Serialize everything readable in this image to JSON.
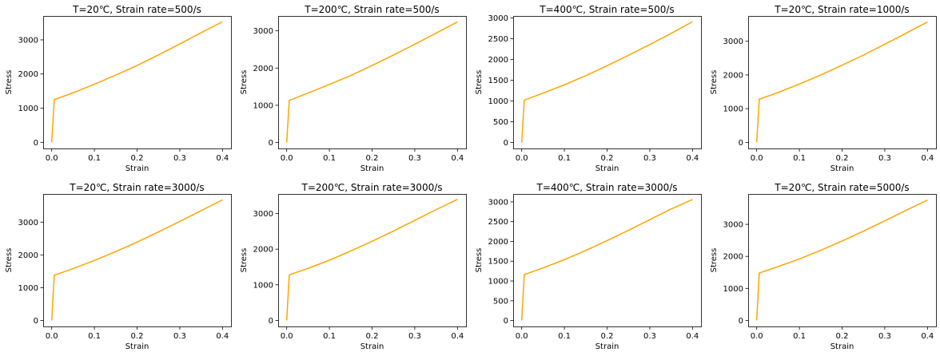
{
  "chart_data": [
    {
      "type": "line",
      "title": "T=20℃, Strain rate=500/s",
      "xlabel": "Strain",
      "ylabel": "Stress",
      "xlim": [
        -0.02,
        0.42
      ],
      "ylim": [
        -180,
        3700
      ],
      "xticks": [
        "0.0",
        "0.1",
        "0.2",
        "0.3",
        "0.4"
      ],
      "yticks": [
        "0",
        "1000",
        "2000",
        "3000"
      ],
      "series": [
        {
          "color": "#FFA500",
          "x": [
            0,
            0.006,
            0.05,
            0.1,
            0.15,
            0.2,
            0.25,
            0.3,
            0.35,
            0.4
          ],
          "y": [
            0,
            1250,
            1450,
            1700,
            1970,
            2250,
            2560,
            2880,
            3210,
            3530
          ]
        }
      ],
      "grid": false
    },
    {
      "type": "line",
      "title": "T=200℃, Strain rate=500/s",
      "xlabel": "Strain",
      "ylabel": "Stress",
      "xlim": [
        -0.02,
        0.42
      ],
      "ylim": [
        -160,
        3400
      ],
      "xticks": [
        "0.0",
        "0.1",
        "0.2",
        "0.3",
        "0.4"
      ],
      "yticks": [
        "0",
        "1000",
        "2000",
        "3000"
      ],
      "series": [
        {
          "color": "#FFA500",
          "x": [
            0,
            0.006,
            0.05,
            0.1,
            0.15,
            0.2,
            0.25,
            0.3,
            0.35,
            0.4
          ],
          "y": [
            0,
            1130,
            1330,
            1560,
            1800,
            2070,
            2350,
            2640,
            2940,
            3240
          ]
        }
      ],
      "grid": false
    },
    {
      "type": "line",
      "title": "T=400℃, Strain rate=500/s",
      "xlabel": "Strain",
      "ylabel": "Stress",
      "xlim": [
        -0.02,
        0.42
      ],
      "ylim": [
        -145,
        3050
      ],
      "xticks": [
        "0.0",
        "0.1",
        "0.2",
        "0.3",
        "0.4"
      ],
      "yticks": [
        "0",
        "500",
        "1000",
        "1500",
        "2000",
        "2500",
        "3000"
      ],
      "series": [
        {
          "color": "#FFA500",
          "x": [
            0,
            0.006,
            0.05,
            0.1,
            0.15,
            0.2,
            0.25,
            0.3,
            0.35,
            0.4
          ],
          "y": [
            0,
            1020,
            1190,
            1390,
            1610,
            1850,
            2100,
            2360,
            2630,
            2910
          ]
        }
      ],
      "grid": false
    },
    {
      "type": "line",
      "title": "T=20℃, Strain rate=1000/s",
      "xlabel": "Strain",
      "ylabel": "Stress",
      "xlim": [
        -0.02,
        0.42
      ],
      "ylim": [
        -180,
        3750
      ],
      "xticks": [
        "0.0",
        "0.1",
        "0.2",
        "0.3",
        "0.4"
      ],
      "yticks": [
        "0",
        "1000",
        "2000",
        "3000"
      ],
      "series": [
        {
          "color": "#FFA500",
          "x": [
            0,
            0.006,
            0.05,
            0.1,
            0.15,
            0.2,
            0.25,
            0.3,
            0.35,
            0.4
          ],
          "y": [
            0,
            1280,
            1480,
            1730,
            2000,
            2290,
            2590,
            2910,
            3240,
            3570
          ]
        }
      ],
      "grid": false
    },
    {
      "type": "line",
      "title": "T=20℃, Strain rate=3000/s",
      "xlabel": "Strain",
      "ylabel": "Stress",
      "xlim": [
        -0.02,
        0.42
      ],
      "ylim": [
        -185,
        3860
      ],
      "xticks": [
        "0.0",
        "0.1",
        "0.2",
        "0.3",
        "0.4"
      ],
      "yticks": [
        "0",
        "1000",
        "2000",
        "3000"
      ],
      "series": [
        {
          "color": "#FFA500",
          "x": [
            0,
            0.006,
            0.05,
            0.1,
            0.15,
            0.2,
            0.25,
            0.3,
            0.35,
            0.4
          ],
          "y": [
            0,
            1380,
            1580,
            1830,
            2100,
            2390,
            2700,
            3020,
            3350,
            3680
          ]
        }
      ],
      "grid": false
    },
    {
      "type": "line",
      "title": "T=200℃, Strain rate=3000/s",
      "xlabel": "Strain",
      "ylabel": "Stress",
      "xlim": [
        -0.02,
        0.42
      ],
      "ylim": [
        -170,
        3550
      ],
      "xticks": [
        "0.0",
        "0.1",
        "0.2",
        "0.3",
        "0.4"
      ],
      "yticks": [
        "0",
        "1000",
        "2000",
        "3000"
      ],
      "series": [
        {
          "color": "#FFA500",
          "x": [
            0,
            0.006,
            0.05,
            0.1,
            0.15,
            0.2,
            0.25,
            0.3,
            0.35,
            0.4
          ],
          "y": [
            0,
            1280,
            1460,
            1690,
            1950,
            2220,
            2510,
            2810,
            3110,
            3400
          ]
        }
      ],
      "grid": false
    },
    {
      "type": "line",
      "title": "T=400℃, Strain rate=3000/s",
      "xlabel": "Strain",
      "ylabel": "Stress",
      "xlim": [
        -0.02,
        0.42
      ],
      "ylim": [
        -150,
        3200
      ],
      "xticks": [
        "0.0",
        "0.1",
        "0.2",
        "0.3",
        "0.4"
      ],
      "yticks": [
        "0",
        "500",
        "1000",
        "1500",
        "2000",
        "2500",
        "3000"
      ],
      "series": [
        {
          "color": "#FFA500",
          "x": [
            0,
            0.006,
            0.05,
            0.1,
            0.15,
            0.2,
            0.25,
            0.3,
            0.35,
            0.4
          ],
          "y": [
            0,
            1160,
            1330,
            1540,
            1770,
            2020,
            2280,
            2550,
            2820,
            3060
          ]
        }
      ],
      "grid": false
    },
    {
      "type": "line",
      "title": "T=20℃, Strain rate=5000/s",
      "xlabel": "Strain",
      "ylabel": "Stress",
      "xlim": [
        -0.02,
        0.42
      ],
      "ylim": [
        -190,
        3950
      ],
      "xticks": [
        "0.0",
        "0.1",
        "0.2",
        "0.3",
        "0.4"
      ],
      "yticks": [
        "0",
        "1000",
        "2000",
        "3000"
      ],
      "series": [
        {
          "color": "#FFA500",
          "x": [
            0,
            0.006,
            0.05,
            0.1,
            0.15,
            0.2,
            0.25,
            0.3,
            0.35,
            0.4
          ],
          "y": [
            0,
            1480,
            1680,
            1920,
            2190,
            2480,
            2790,
            3110,
            3440,
            3760
          ]
        }
      ],
      "grid": false
    }
  ]
}
